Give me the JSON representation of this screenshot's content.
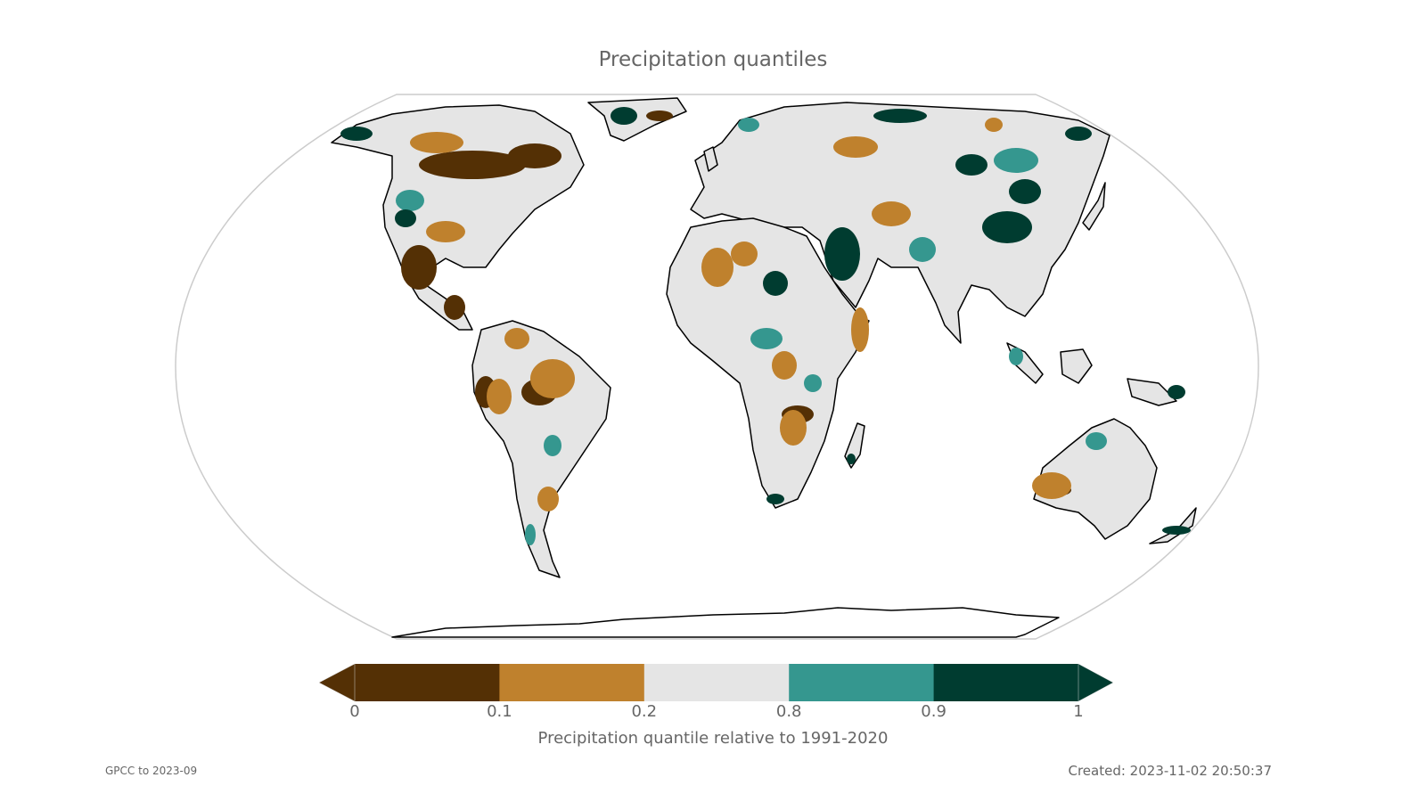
{
  "title": "Precipitation quantiles",
  "colorbar": {
    "label": "Precipitation quantile relative to 1991-2020",
    "ticks": [
      "0",
      "0.1",
      "0.2",
      "0.8",
      "0.9",
      "1"
    ],
    "bins": [
      {
        "range": "0-0.1",
        "color": "#543005"
      },
      {
        "range": "0.1-0.2",
        "color": "#bf812d"
      },
      {
        "range": "0.2-0.8",
        "color": "#e5e5e5"
      },
      {
        "range": "0.8-0.9",
        "color": "#35978f"
      },
      {
        "range": "0.9-1",
        "color": "#003c30"
      }
    ],
    "extend": "both"
  },
  "source": "GPCC to 2023-09",
  "created": "Created: 2023-11-02 20:50:37",
  "map": {
    "projection": "Equal Earth",
    "background": "#ffffff",
    "coastline_color": "#000000",
    "frame_color": "#cccccc"
  }
}
